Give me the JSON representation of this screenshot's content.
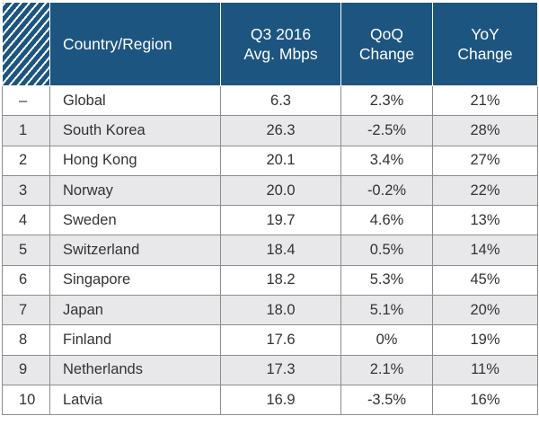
{
  "chart_data": {
    "type": "table",
    "columns": [
      "",
      "Country/Region",
      "Q3 2016 Avg. Mbps",
      "QoQ Change",
      "YoY Change"
    ],
    "header": {
      "rank": "",
      "country": "Country/Region",
      "speed_line1": "Q3 2016",
      "speed_line2": "Avg. Mbps",
      "qoq_line1": "QoQ",
      "qoq_line2": "Change",
      "yoy_line1": "YoY",
      "yoy_line2": "Change"
    },
    "rows": [
      {
        "rank": "–",
        "country": "Global",
        "speed": "6.3",
        "qoq": "2.3%",
        "yoy": "21%"
      },
      {
        "rank": "1",
        "country": "South Korea",
        "speed": "26.3",
        "qoq": "-2.5%",
        "yoy": "28%"
      },
      {
        "rank": "2",
        "country": "Hong Kong",
        "speed": "20.1",
        "qoq": "3.4%",
        "yoy": "27%"
      },
      {
        "rank": "3",
        "country": "Norway",
        "speed": "20.0",
        "qoq": "-0.2%",
        "yoy": "22%"
      },
      {
        "rank": "4",
        "country": "Sweden",
        "speed": "19.7",
        "qoq": "4.6%",
        "yoy": "13%"
      },
      {
        "rank": "5",
        "country": "Switzerland",
        "speed": "18.4",
        "qoq": "0.5%",
        "yoy": "14%"
      },
      {
        "rank": "6",
        "country": "Singapore",
        "speed": "18.2",
        "qoq": "5.3%",
        "yoy": "45%"
      },
      {
        "rank": "7",
        "country": "Japan",
        "speed": "18.0",
        "qoq": "5.1%",
        "yoy": "20%"
      },
      {
        "rank": "8",
        "country": "Finland",
        "speed": "17.6",
        "qoq": "0%",
        "yoy": "19%"
      },
      {
        "rank": "9",
        "country": "Netherlands",
        "speed": "17.3",
        "qoq": "2.1%",
        "yoy": "11%"
      },
      {
        "rank": "10",
        "country": "Latvia",
        "speed": "16.9",
        "qoq": "-3.5%",
        "yoy": "16%"
      }
    ]
  },
  "colors": {
    "header_bg": "#1d5581",
    "header_text": "#ffffff",
    "shaded_row": "#e8e8ea",
    "border": "#8c8c8c",
    "body_text": "#333333"
  }
}
